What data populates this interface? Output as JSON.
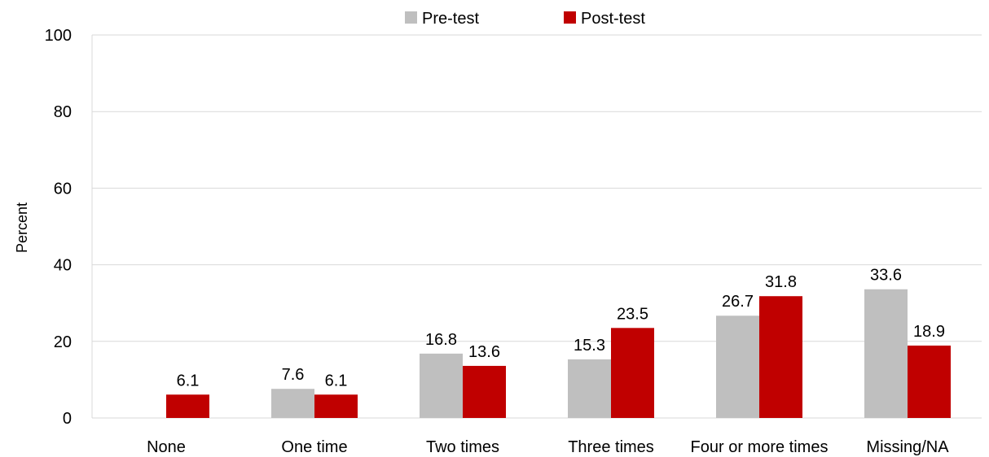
{
  "chart_data": {
    "type": "bar",
    "categories": [
      "None",
      "One time",
      "Two times",
      "Three times",
      "Four or more times",
      "Missing/NA"
    ],
    "series": [
      {
        "name": "Pre-test",
        "color": "#bfbfbf",
        "values": [
          0,
          7.6,
          16.8,
          15.3,
          26.7,
          33.6
        ],
        "labels": [
          "",
          "7.6",
          "16.8",
          "15.3",
          "26.7",
          "33.6"
        ]
      },
      {
        "name": "Post-test",
        "color": "#c00000",
        "values": [
          6.1,
          6.1,
          13.6,
          23.5,
          31.8,
          18.9
        ],
        "labels": [
          "6.1",
          "6.1",
          "13.6",
          "23.5",
          "31.8",
          "18.9"
        ]
      }
    ],
    "ylabel": "Percent",
    "xlabel": "",
    "title": "",
    "ylim": [
      0,
      100
    ],
    "yticks": [
      0,
      20,
      40,
      60,
      80,
      100
    ],
    "grid": true,
    "legend": "top"
  }
}
